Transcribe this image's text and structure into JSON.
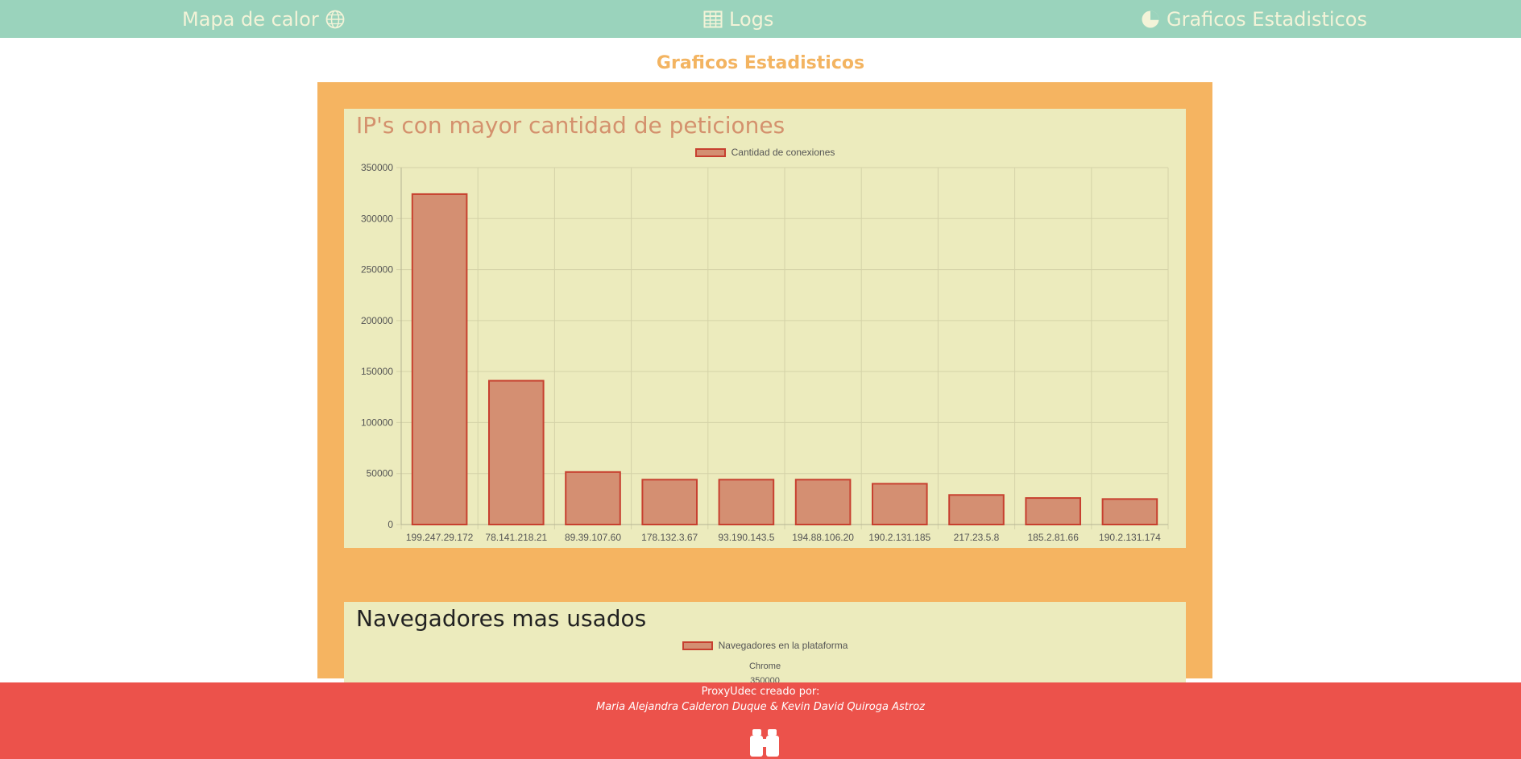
{
  "nav": {
    "items": [
      {
        "label": "Mapa de calor",
        "icon": "globe-icon"
      },
      {
        "label": "Logs",
        "icon": "table-icon"
      },
      {
        "label": "Graficos Estadisticos",
        "icon": "pie-chart-icon"
      }
    ]
  },
  "page_title": "Graficos Estadisticos",
  "card1": {
    "title": "IP's con mayor cantidad de peticiones",
    "legend": "Cantidad de conexiones"
  },
  "card2": {
    "title": "Navegadores mas usados",
    "legend": "Navegadores en la plataforma",
    "first_label": "Chrome",
    "first_value": "350000"
  },
  "footer": {
    "line1": "ProxyUdec creado por:",
    "line2": "Maria Alejandra Calderon Duque & Kevin David Quiroga Astroz",
    "logo": "binoculars-icon"
  },
  "colors": {
    "nav_bg": "#9ad3bc",
    "panel_bg": "#f5b461",
    "card_bg": "#ecebbd",
    "bar_fill": "#d48f72",
    "bar_border": "#c7402f",
    "footer_bg": "#ec524b",
    "title_accent": "#f3b461"
  },
  "chart_data": {
    "type": "bar",
    "categories": [
      "199.247.29.172",
      "78.141.218.21",
      "89.39.107.60",
      "178.132.3.67",
      "93.190.143.5",
      "194.88.106.20",
      "190.2.131.185",
      "217.23.5.8",
      "185.2.81.66",
      "190.2.131.174"
    ],
    "series": [
      {
        "name": "Cantidad de conexiones",
        "values": [
          324000,
          141000,
          51500,
          44000,
          44000,
          44000,
          40000,
          29000,
          26000,
          25000
        ]
      }
    ],
    "ylim": [
      0,
      350000
    ],
    "yticks": [
      0,
      50000,
      100000,
      150000,
      200000,
      250000,
      300000,
      350000
    ],
    "grid": true,
    "legend_position": "top"
  }
}
